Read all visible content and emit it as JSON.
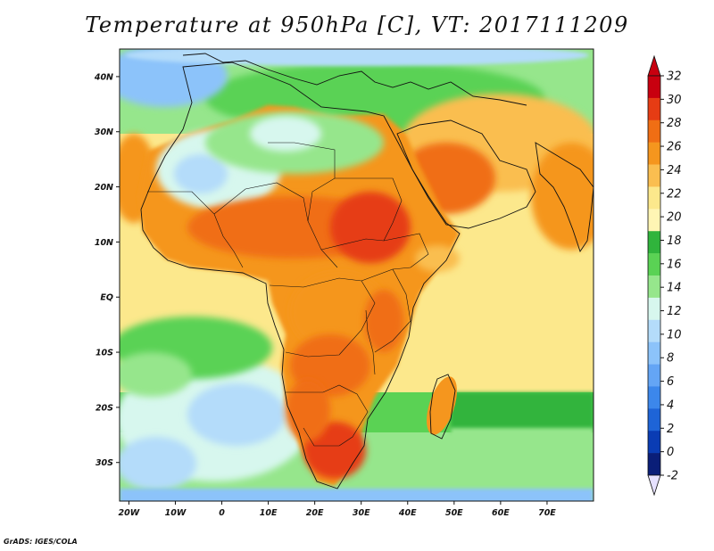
{
  "title": "Temperature at 950hPa [C], VT: 2017111209",
  "credit": "GrADS: IGES/COLA",
  "map": {
    "lon_range": [
      -22,
      80
    ],
    "lat_range": [
      -37,
      45
    ],
    "lon_ticks": [
      {
        "value": -20,
        "label": "20W"
      },
      {
        "value": -10,
        "label": "10W"
      },
      {
        "value": 0,
        "label": "0"
      },
      {
        "value": 10,
        "label": "10E"
      },
      {
        "value": 20,
        "label": "20E"
      },
      {
        "value": 30,
        "label": "30E"
      },
      {
        "value": 40,
        "label": "40E"
      },
      {
        "value": 50,
        "label": "50E"
      },
      {
        "value": 60,
        "label": "60E"
      },
      {
        "value": 70,
        "label": "70E"
      }
    ],
    "lat_ticks": [
      {
        "value": 40,
        "label": "40N"
      },
      {
        "value": 30,
        "label": "30N"
      },
      {
        "value": 20,
        "label": "20N"
      },
      {
        "value": 10,
        "label": "10N"
      },
      {
        "value": 0,
        "label": "EQ"
      },
      {
        "value": -10,
        "label": "10S"
      },
      {
        "value": -20,
        "label": "20S"
      },
      {
        "value": -30,
        "label": "30S"
      }
    ]
  },
  "colorbar": {
    "labels": [
      "32",
      "30",
      "28",
      "26",
      "24",
      "22",
      "20",
      "18",
      "16",
      "14",
      "12",
      "10",
      "8",
      "6",
      "4",
      "2",
      "0",
      "-2"
    ],
    "colors_top_to_bottom": [
      "#c8000f",
      "#e63c14",
      "#f06e14",
      "#f5961e",
      "#fabe50",
      "#fce88c",
      "#fff5b4",
      "#30b43c",
      "#5ad254",
      "#96e68c",
      "#d7f7ee",
      "#b4dcfa",
      "#8cc3fa",
      "#64a5f5",
      "#3c87eb",
      "#1e64d7",
      "#0a3cb4",
      "#0a1e78"
    ],
    "arrow_top_color": "#c8000f",
    "arrow_bottom_color": "#e6e1ff"
  },
  "fields": {
    "background": "#fce88c",
    "ocean_cool": "#b4dcfa",
    "ocean_mid": "#96e68c",
    "land_hot": "#f06e14",
    "land_hottest": "#e63c14",
    "land_warm": "#f5961e",
    "sahara": "#d7f7ee",
    "med": "#5ad254"
  }
}
